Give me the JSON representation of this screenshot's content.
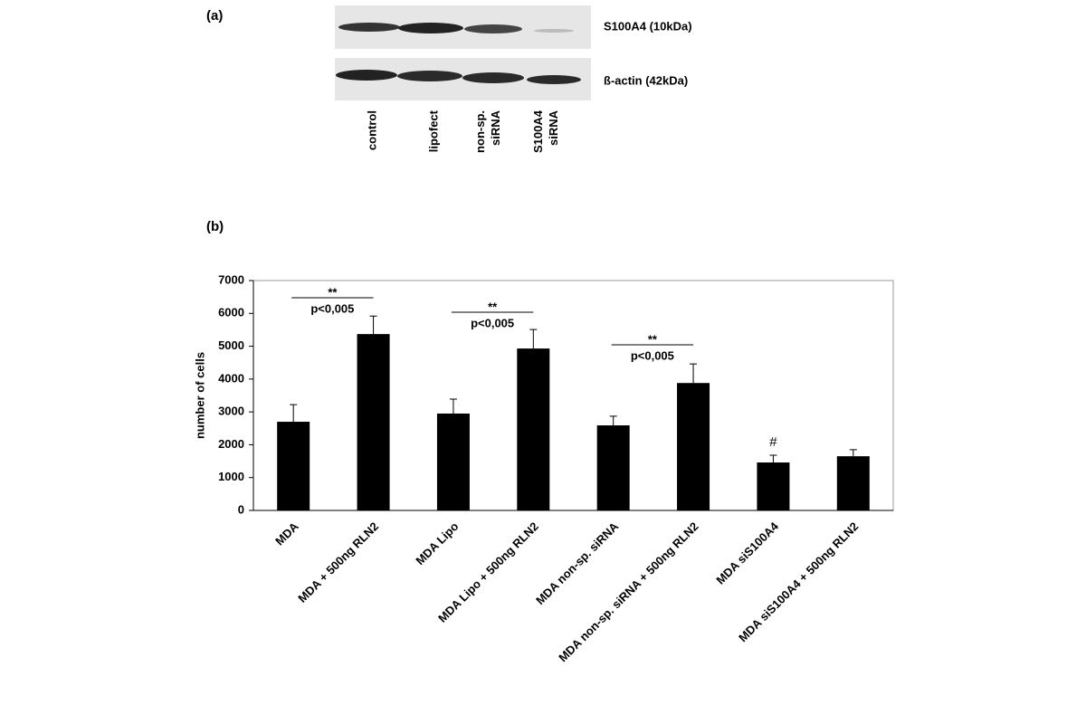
{
  "panel_a": {
    "label": "(a)",
    "bands": [
      "S100A4 (10kDa)",
      "ß-actin (42kDa)"
    ],
    "lanes": [
      [
        "control"
      ],
      [
        "lipofect"
      ],
      [
        "non-sp.",
        "siRNA"
      ],
      [
        "S100A4",
        "siRNA"
      ]
    ]
  },
  "chart_data": {
    "type": "bar",
    "panel": "(b)",
    "ylabel": "number of cells",
    "categories": [
      "MDA",
      "MDA + 500ng RLN2",
      "MDA Lipo",
      "MDA Lipo + 500ng RLN2",
      "MDA non-sp. siRNA",
      "MDA non-sp. siRNA + 500ng RLN2",
      "MDA siS100A4",
      "MDA siS100A4 + 500ng RLN2"
    ],
    "values": [
      2700,
      5370,
      2950,
      4930,
      2590,
      3880,
      1460,
      1650
    ],
    "errors": [
      520,
      550,
      440,
      580,
      280,
      580,
      220,
      200
    ],
    "color": "#000000",
    "ylim": [
      0,
      7000
    ],
    "yticks": [
      0,
      1000,
      2000,
      3000,
      4000,
      5000,
      6000,
      7000
    ],
    "annotations": [
      {
        "stars": "**",
        "p": "p<0,005"
      },
      {
        "stars": "**",
        "p": "p<0,005"
      },
      {
        "stars": "**",
        "p": "p<0,005"
      }
    ],
    "marker": "#"
  }
}
